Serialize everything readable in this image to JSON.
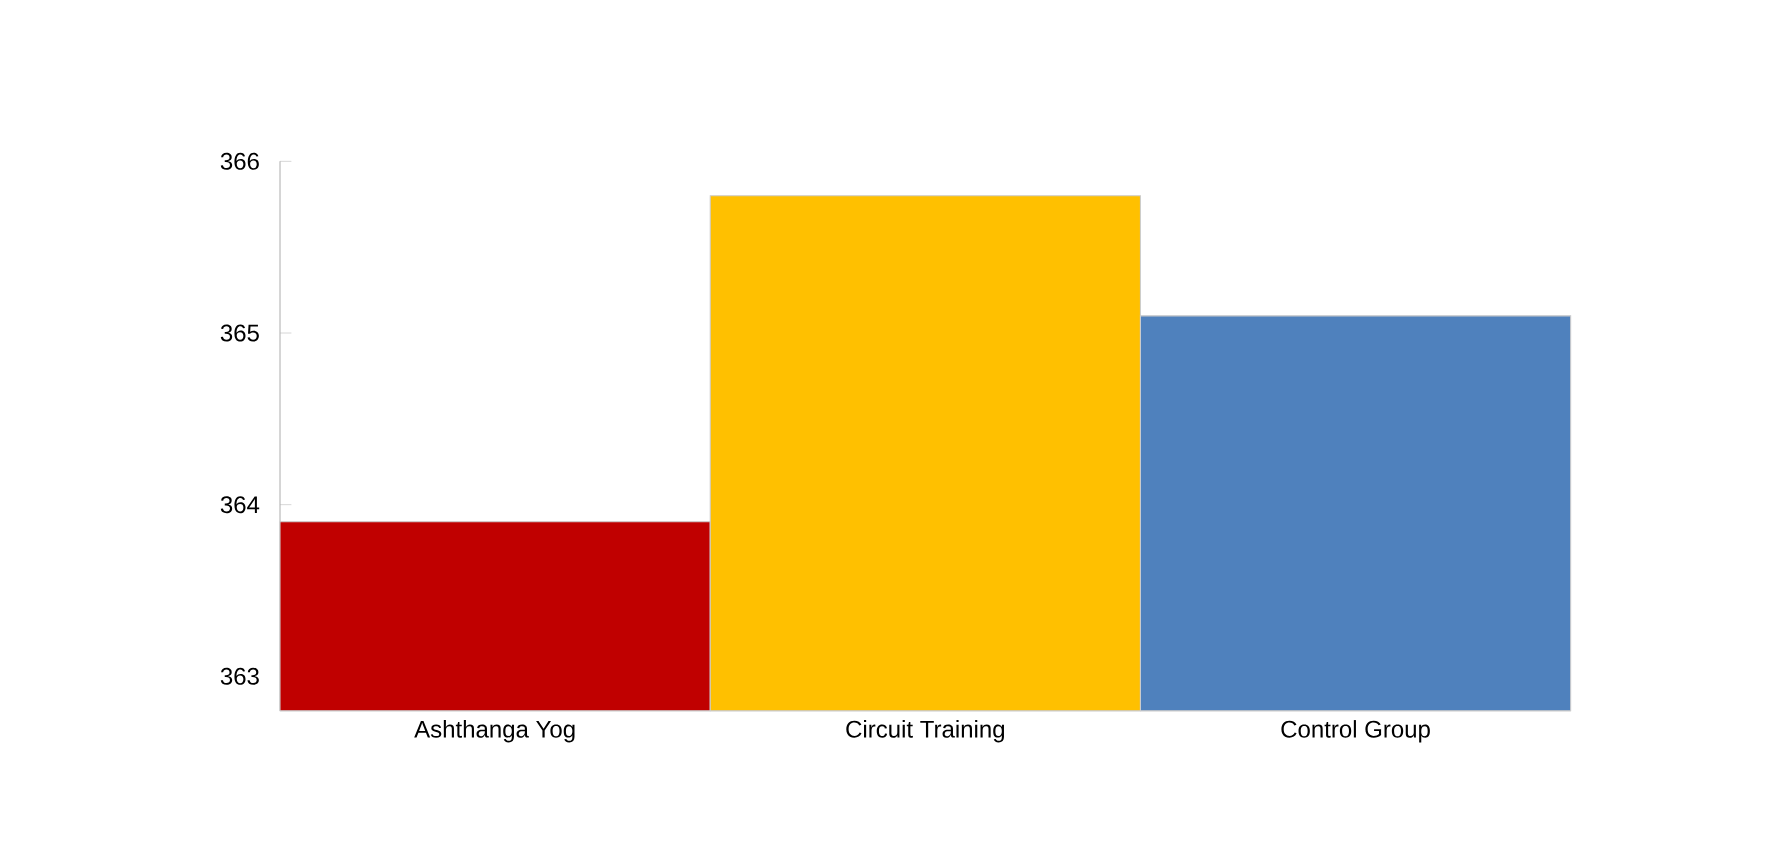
{
  "chart_data": {
    "type": "bar",
    "categories": [
      "Ashthanga Yog",
      "Circuit Training",
      "Control Group"
    ],
    "values": [
      363.9,
      365.8,
      365.1
    ],
    "colors": [
      "#c00000",
      "#ffc000",
      "#4f81bd"
    ],
    "ylim": [
      362.8,
      366
    ],
    "yticks": [
      363,
      364,
      365,
      366
    ]
  }
}
